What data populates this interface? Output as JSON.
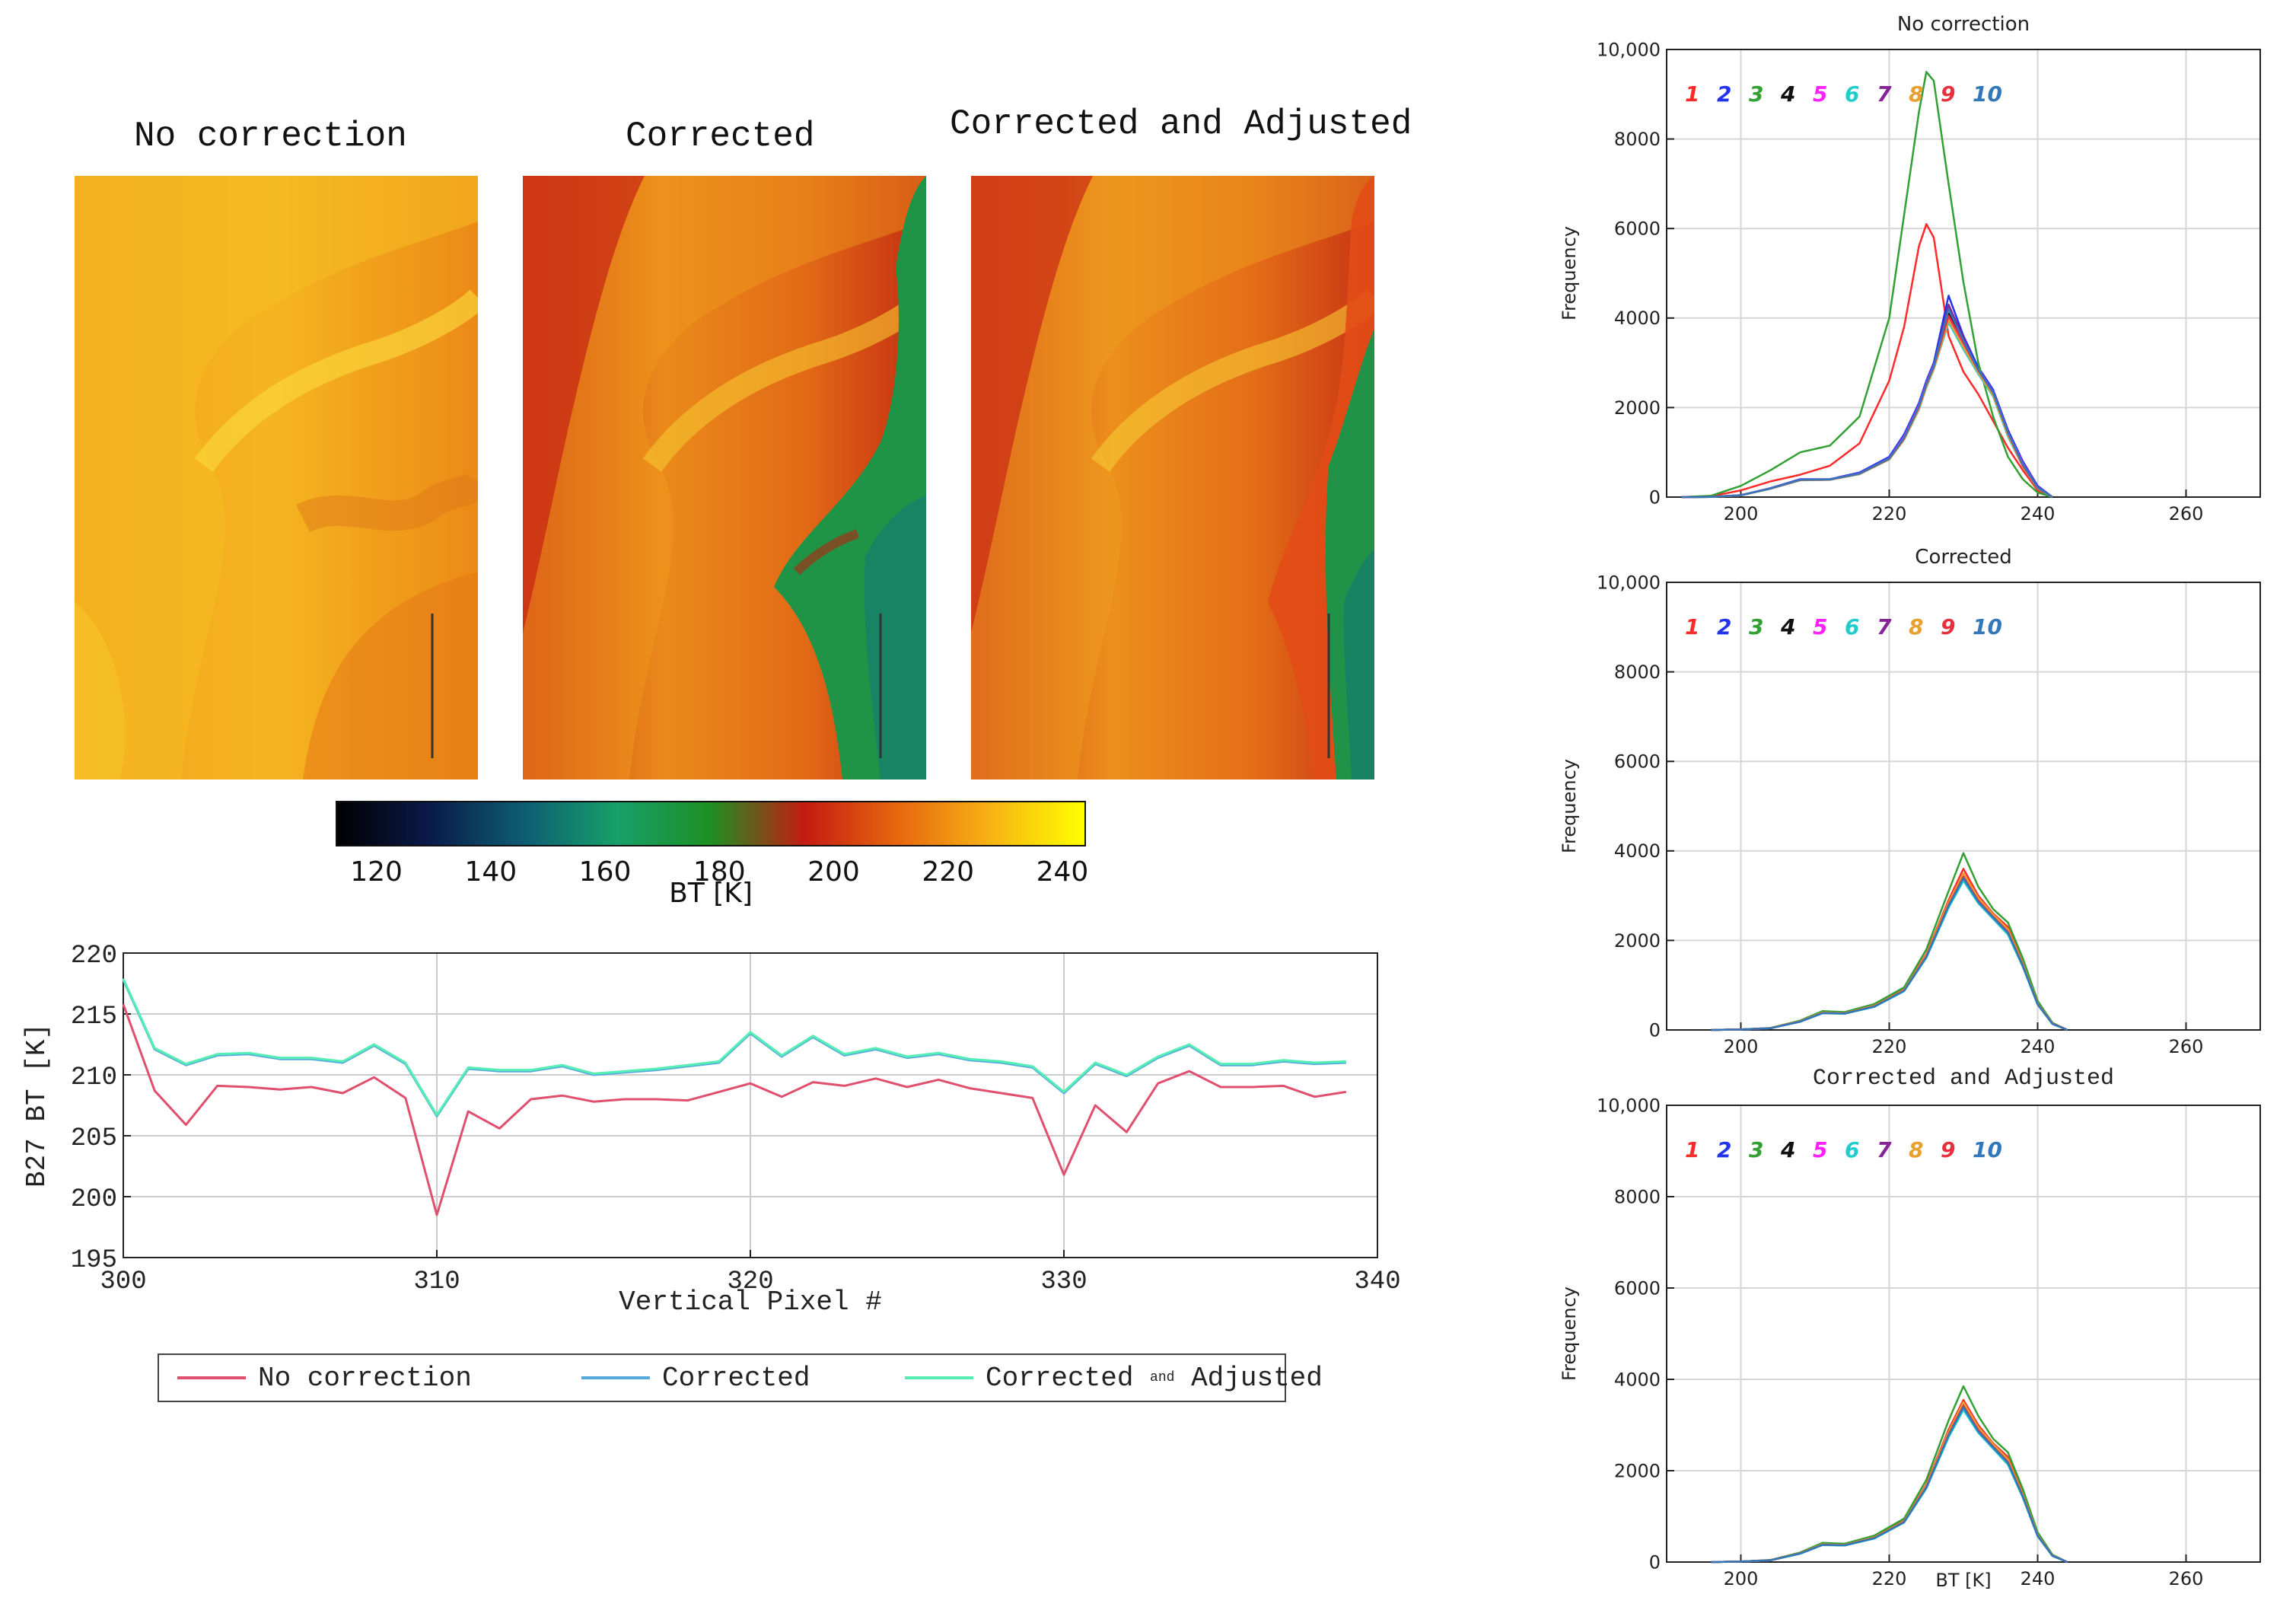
{
  "image_panels": {
    "titles": [
      "No correction",
      "Corrected",
      "Corrected and Adjusted"
    ]
  },
  "colorbar": {
    "label": "BT [K]",
    "ticks": [
      "120",
      "140",
      "160",
      "180",
      "200",
      "220",
      "240"
    ],
    "range": [
      113,
      244
    ],
    "colors": [
      "#000000",
      "#0a1a4a",
      "#0e5c72",
      "#17a06a",
      "#1e8f23",
      "#c41b12",
      "#e7670f",
      "#f7b413",
      "#ffff00"
    ]
  },
  "line_legend": {
    "entries": [
      "No correction",
      "Corrected",
      "Corrected",
      "and",
      "Adjusted"
    ]
  },
  "chart_data": [
    {
      "type": "line",
      "id": "profile",
      "title": "",
      "xlabel": "Vertical Pixel #",
      "ylabel": "B27 BT [K]",
      "xlim": [
        300,
        340
      ],
      "ylim": [
        195,
        220
      ],
      "xticks": [
        "300",
        "310",
        "320",
        "330",
        "340"
      ],
      "yticks": [
        "195",
        "200",
        "205",
        "210",
        "215",
        "220"
      ],
      "x": [
        300,
        301,
        302,
        303,
        304,
        305,
        306,
        307,
        308,
        309,
        310,
        311,
        312,
        313,
        314,
        315,
        316,
        317,
        318,
        319,
        320,
        321,
        322,
        323,
        324,
        325,
        326,
        327,
        328,
        329,
        330,
        331,
        332,
        333,
        334,
        335,
        336,
        337,
        338,
        339
      ],
      "series": [
        {
          "name": "No correction",
          "color": "#e0506e",
          "values": [
            215.8,
            208.7,
            205.9,
            209.1,
            209.0,
            208.8,
            209.0,
            208.5,
            209.8,
            208.1,
            198.5,
            207.0,
            205.6,
            208.0,
            208.3,
            207.8,
            208.0,
            208.0,
            207.9,
            208.6,
            209.3,
            208.2,
            209.4,
            209.1,
            209.7,
            209.0,
            209.6,
            208.9,
            208.5,
            208.1,
            201.8,
            207.5,
            205.3,
            209.3,
            210.3,
            209.0,
            209.0,
            209.1,
            208.2,
            208.6
          ]
        },
        {
          "name": "Corrected",
          "color": "#55aadd",
          "values": [
            217.8,
            212.1,
            210.8,
            211.6,
            211.7,
            211.3,
            211.3,
            211.0,
            212.4,
            210.9,
            206.6,
            210.5,
            210.3,
            210.3,
            210.7,
            210.0,
            210.2,
            210.4,
            210.7,
            211.0,
            213.4,
            211.5,
            213.1,
            211.6,
            212.1,
            211.4,
            211.7,
            211.2,
            211.0,
            210.6,
            208.5,
            210.9,
            209.9,
            211.4,
            212.4,
            210.8,
            210.8,
            211.1,
            210.9,
            211.0
          ]
        },
        {
          "name": "Corrected and Adjusted",
          "color": "#55eeb4",
          "values": [
            217.9,
            212.2,
            210.9,
            211.7,
            211.8,
            211.4,
            211.4,
            211.1,
            212.5,
            211.0,
            206.7,
            210.6,
            210.4,
            210.4,
            210.8,
            210.1,
            210.3,
            210.5,
            210.8,
            211.1,
            213.5,
            211.6,
            213.2,
            211.7,
            212.2,
            211.5,
            211.8,
            211.3,
            211.1,
            210.7,
            208.6,
            211.0,
            210.0,
            211.5,
            212.5,
            210.9,
            210.9,
            211.2,
            211.0,
            211.1
          ]
        }
      ]
    },
    {
      "type": "line",
      "id": "hist-1",
      "title": "No correction",
      "xlabel": "",
      "ylabel": "Frequency",
      "xlim": [
        190,
        270
      ],
      "ylim": [
        0,
        10000
      ],
      "xticks": [
        "200",
        "220",
        "240",
        "260"
      ],
      "yticks": [
        "0",
        "2000",
        "4000",
        "6000",
        "8000",
        "10,000"
      ],
      "x": [
        192,
        196,
        200,
        204,
        208,
        212,
        216,
        220,
        222,
        224,
        225,
        226,
        228,
        230,
        232,
        234,
        236,
        238,
        240,
        242
      ],
      "series": [
        {
          "name": "1",
          "color": "#ff2a2a",
          "values": [
            0,
            20,
            150,
            350,
            500,
            700,
            1200,
            2600,
            3800,
            5600,
            6100,
            5800,
            3600,
            2800,
            2300,
            1700,
            1100,
            600,
            150,
            0
          ]
        },
        {
          "name": "2",
          "color": "#2233ee",
          "values": [
            0,
            5,
            40,
            200,
            400,
            400,
            550,
            900,
            1400,
            2100,
            2600,
            3000,
            4500,
            3600,
            2900,
            2400,
            1500,
            800,
            250,
            0
          ]
        },
        {
          "name": "3",
          "color": "#33a033",
          "values": [
            0,
            30,
            250,
            600,
            1000,
            1150,
            1800,
            4000,
            6300,
            8600,
            9500,
            9300,
            7000,
            4800,
            3000,
            1800,
            900,
            400,
            100,
            0
          ]
        },
        {
          "name": "4",
          "color": "#111111",
          "values": [
            0,
            5,
            40,
            190,
            380,
            390,
            520,
            850,
            1300,
            2000,
            2500,
            2900,
            4100,
            3500,
            2800,
            2300,
            1400,
            700,
            200,
            0
          ]
        },
        {
          "name": "5",
          "color": "#ff22ff",
          "values": [
            0,
            5,
            45,
            195,
            390,
            395,
            530,
            870,
            1350,
            2050,
            2550,
            2950,
            4000,
            3400,
            2850,
            2350,
            1450,
            750,
            220,
            0
          ]
        },
        {
          "name": "6",
          "color": "#22cccc",
          "values": [
            0,
            5,
            38,
            185,
            375,
            385,
            510,
            840,
            1280,
            1950,
            2450,
            2850,
            3900,
            3300,
            2750,
            2250,
            1350,
            680,
            190,
            0
          ]
        },
        {
          "name": "7",
          "color": "#882299",
          "values": [
            0,
            5,
            42,
            192,
            385,
            392,
            525,
            860,
            1320,
            2020,
            2520,
            2920,
            4300,
            3550,
            2820,
            2320,
            1420,
            720,
            210,
            0
          ]
        },
        {
          "name": "8",
          "color": "#e8a030",
          "values": [
            0,
            5,
            39,
            188,
            378,
            388,
            515,
            845,
            1290,
            1970,
            2470,
            2870,
            3950,
            3350,
            2780,
            2280,
            1380,
            690,
            195,
            0
          ]
        },
        {
          "name": "9",
          "color": "#e8303c",
          "values": [
            0,
            5,
            41,
            191,
            383,
            391,
            522,
            855,
            1310,
            2010,
            2510,
            2910,
            4050,
            3450,
            2830,
            2330,
            1430,
            710,
            205,
            0
          ]
        },
        {
          "name": "10",
          "color": "#3377bb",
          "values": [
            0,
            5,
            43,
            194,
            388,
            394,
            528,
            865,
            1330,
            2030,
            2530,
            2930,
            4200,
            3500,
            2840,
            2340,
            1440,
            730,
            215,
            0
          ]
        }
      ]
    },
    {
      "type": "line",
      "id": "hist-2",
      "title": "Corrected",
      "xlabel": "",
      "ylabel": "Frequency",
      "xlim": [
        190,
        270
      ],
      "ylim": [
        0,
        10000
      ],
      "xticks": [
        "200",
        "220",
        "240",
        "260"
      ],
      "yticks": [
        "0",
        "2000",
        "4000",
        "6000",
        "8000",
        "10,000"
      ],
      "x": [
        196,
        200,
        204,
        208,
        211,
        214,
        218,
        222,
        225,
        228,
        230,
        232,
        234,
        236,
        238,
        240,
        242,
        244
      ],
      "series": [
        {
          "name": "1",
          "color": "#ff2a2a",
          "values": [
            0,
            10,
            40,
            200,
            400,
            380,
            550,
            900,
            1700,
            2900,
            3600,
            3000,
            2600,
            2300,
            1500,
            600,
            150,
            0
          ]
        },
        {
          "name": "2",
          "color": "#2233ee",
          "values": [
            0,
            10,
            40,
            190,
            380,
            370,
            530,
            880,
            1650,
            2800,
            3400,
            2900,
            2550,
            2200,
            1450,
            580,
            140,
            0
          ]
        },
        {
          "name": "3",
          "color": "#33a033",
          "values": [
            0,
            12,
            45,
            210,
            420,
            400,
            580,
            950,
            1800,
            3100,
            3950,
            3200,
            2700,
            2400,
            1600,
            650,
            160,
            0
          ]
        },
        {
          "name": "4",
          "color": "#111111",
          "values": [
            0,
            10,
            38,
            185,
            375,
            365,
            520,
            870,
            1620,
            2750,
            3350,
            2850,
            2500,
            2150,
            1420,
            570,
            135,
            0
          ]
        },
        {
          "name": "5",
          "color": "#ff22ff",
          "values": [
            0,
            10,
            39,
            188,
            378,
            368,
            525,
            875,
            1640,
            2780,
            3380,
            2880,
            2520,
            2180,
            1440,
            575,
            138,
            0
          ]
        },
        {
          "name": "6",
          "color": "#22cccc",
          "values": [
            0,
            10,
            37,
            182,
            372,
            362,
            515,
            865,
            1610,
            2730,
            3330,
            2830,
            2480,
            2130,
            1410,
            565,
            132,
            0
          ]
        },
        {
          "name": "7",
          "color": "#882299",
          "values": [
            0,
            10,
            41,
            192,
            385,
            372,
            535,
            885,
            1660,
            2820,
            3450,
            2920,
            2560,
            2220,
            1460,
            585,
            142,
            0
          ]
        },
        {
          "name": "8",
          "color": "#e8a030",
          "values": [
            0,
            10,
            40,
            195,
            390,
            375,
            540,
            890,
            1680,
            2850,
            3500,
            2950,
            2580,
            2250,
            1480,
            590,
            145,
            0
          ]
        },
        {
          "name": "9",
          "color": "#e8303c",
          "values": [
            0,
            10,
            39,
            189,
            379,
            369,
            527,
            877,
            1645,
            2790,
            3420,
            2890,
            2530,
            2190,
            1445,
            578,
            139,
            0
          ]
        },
        {
          "name": "10",
          "color": "#3377bb",
          "values": [
            0,
            10,
            38,
            186,
            376,
            366,
            522,
            872,
            1630,
            2770,
            3390,
            2860,
            2510,
            2170,
            1430,
            572,
            136,
            0
          ]
        }
      ]
    },
    {
      "type": "line",
      "id": "hist-3",
      "title": "Corrected and Adjusted",
      "xlabel": "BT [K]",
      "ylabel": "Frequency",
      "xlim": [
        190,
        270
      ],
      "ylim": [
        0,
        10000
      ],
      "xticks": [
        "200",
        "220",
        "240",
        "260"
      ],
      "yticks": [
        "0",
        "2000",
        "4000",
        "6000",
        "8000",
        "10,000"
      ],
      "x": [
        196,
        200,
        204,
        208,
        211,
        214,
        218,
        222,
        225,
        228,
        230,
        232,
        234,
        236,
        238,
        240,
        242,
        244
      ],
      "series": [
        {
          "name": "1",
          "color": "#ff2a2a",
          "values": [
            0,
            10,
            40,
            200,
            400,
            380,
            550,
            900,
            1700,
            2900,
            3550,
            3000,
            2600,
            2300,
            1500,
            600,
            150,
            0
          ]
        },
        {
          "name": "2",
          "color": "#2233ee",
          "values": [
            0,
            10,
            40,
            190,
            380,
            370,
            530,
            880,
            1650,
            2800,
            3400,
            2900,
            2550,
            2200,
            1450,
            580,
            140,
            0
          ]
        },
        {
          "name": "3",
          "color": "#33a033",
          "values": [
            0,
            12,
            45,
            210,
            420,
            400,
            580,
            950,
            1800,
            3100,
            3850,
            3200,
            2700,
            2400,
            1600,
            650,
            160,
            0
          ]
        },
        {
          "name": "4",
          "color": "#111111",
          "values": [
            0,
            10,
            38,
            185,
            375,
            365,
            520,
            870,
            1620,
            2750,
            3350,
            2850,
            2500,
            2150,
            1420,
            570,
            135,
            0
          ]
        },
        {
          "name": "5",
          "color": "#ff22ff",
          "values": [
            0,
            10,
            39,
            188,
            378,
            368,
            525,
            875,
            1640,
            2780,
            3380,
            2880,
            2520,
            2180,
            1440,
            575,
            138,
            0
          ]
        },
        {
          "name": "6",
          "color": "#22cccc",
          "values": [
            0,
            10,
            37,
            182,
            372,
            362,
            515,
            865,
            1610,
            2730,
            3330,
            2830,
            2480,
            2130,
            1410,
            565,
            132,
            0
          ]
        },
        {
          "name": "7",
          "color": "#882299",
          "values": [
            0,
            10,
            41,
            192,
            385,
            372,
            535,
            885,
            1660,
            2820,
            3450,
            2920,
            2560,
            2220,
            1460,
            585,
            142,
            0
          ]
        },
        {
          "name": "8",
          "color": "#e8a030",
          "values": [
            0,
            10,
            40,
            195,
            390,
            375,
            540,
            890,
            1680,
            2850,
            3500,
            2950,
            2580,
            2250,
            1480,
            590,
            145,
            0
          ]
        },
        {
          "name": "9",
          "color": "#e8303c",
          "values": [
            0,
            10,
            39,
            189,
            379,
            369,
            527,
            877,
            1645,
            2790,
            3420,
            2890,
            2530,
            2190,
            1445,
            578,
            139,
            0
          ]
        },
        {
          "name": "10",
          "color": "#3377bb",
          "values": [
            0,
            10,
            38,
            186,
            376,
            366,
            522,
            872,
            1630,
            2770,
            3390,
            2860,
            2510,
            2170,
            1430,
            572,
            136,
            0
          ]
        }
      ]
    }
  ]
}
